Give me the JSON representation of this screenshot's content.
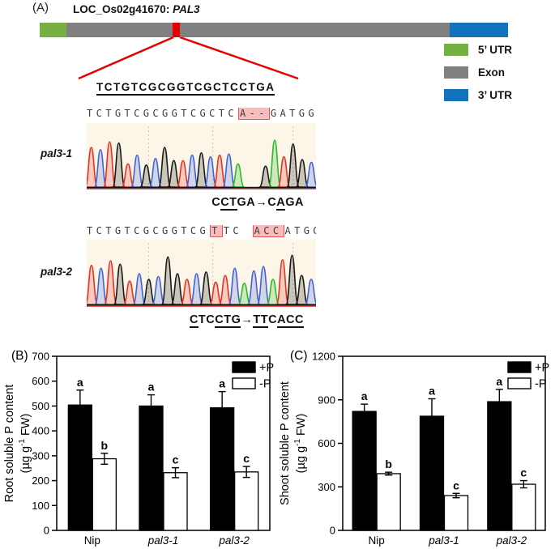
{
  "panelA": {
    "label": "(A)",
    "gene_locus": "LOC_Os02g41670: ",
    "gene_name": "PAL3",
    "colors": {
      "utr5": "#76b043",
      "exon": "#808080",
      "utr3": "#1173bc",
      "marker": "#e60000"
    },
    "legend": [
      {
        "label": "5’ UTR",
        "color": "#76b043"
      },
      {
        "label": "Exon",
        "color": "#808080"
      },
      {
        "label": "3’ UTR",
        "color": "#1173bc"
      }
    ],
    "ref_seq": "TCTGTCGCGGTCGCTCCTGA",
    "trace_colors": {
      "A": "#2eb82e",
      "C": "#4263d8",
      "G": "#1a1a1a",
      "T": "#e63329"
    },
    "mutants": [
      {
        "name": "pal3-1",
        "seq_segments": [
          {
            "text": "TCTGTCGCGGTCGCTC",
            "hl": false
          },
          {
            "text": "A--",
            "hl": true
          },
          {
            "text": "GATGG",
            "hl": false
          }
        ],
        "trace_bases": "TCTGTCGCGGTCGCTCA--GATGGC",
        "trace_heights": [
          0.72,
          0.68,
          0.82,
          0.8,
          0.42,
          0.58,
          0.4,
          0.52,
          0.72,
          0.48,
          0.48,
          0.58,
          0.62,
          0.55,
          0.58,
          0.6,
          0.42,
          0,
          0,
          0.38,
          0.85,
          0.55,
          0.78,
          0.5,
          0.45
        ],
        "mutation": [
          {
            "text": "C",
            "u": false
          },
          {
            "text": "CT",
            "u": true
          },
          {
            "text": "GA",
            "u": false
          },
          {
            "text": "→",
            "u": false
          },
          {
            "text": "C",
            "u": false
          },
          {
            "text": "A",
            "u": true
          },
          {
            "text": "GA",
            "u": false
          }
        ]
      },
      {
        "name": "pal3-2",
        "seq_segments": [
          {
            "text": "TCTGTCGCGGTCG",
            "hl": false
          },
          {
            "text": "T",
            "hl": true
          },
          {
            "text": "TC ",
            "hl": false
          },
          {
            "text": "ACC",
            "hl": true
          },
          {
            "text": "ATGG",
            "hl": false
          }
        ],
        "trace_bases": "TCTGTCGCGGTCGTTCACCATGGC",
        "trace_heights": [
          0.7,
          0.65,
          0.78,
          0.72,
          0.42,
          0.55,
          0.45,
          0.5,
          0.85,
          0.55,
          0.45,
          0.55,
          0.58,
          0.4,
          0.52,
          0.65,
          0.38,
          0.6,
          0.68,
          0.45,
          0.8,
          0.88,
          0.52,
          0.45
        ],
        "mutation": [
          {
            "text": "C",
            "u": true
          },
          {
            "text": "TC",
            "u": false
          },
          {
            "text": "CTG",
            "u": true
          },
          {
            "text": "→",
            "u": false
          },
          {
            "text": "TT",
            "u": true
          },
          {
            "text": "C",
            "u": false
          },
          {
            "text": "ACC",
            "u": true
          }
        ]
      }
    ]
  },
  "chart_data": [
    {
      "id": "root-p",
      "type": "bar",
      "panel_label": "(B)",
      "ylabel": "Root soluble P content",
      "ylabel2_pre": "(µg g",
      "ylabel2_sup": "-1",
      "ylabel2_post": " FW)",
      "categories": [
        "Nip",
        "pal3-1",
        "pal3-2"
      ],
      "categories_italic": [
        false,
        true,
        true
      ],
      "ylim": [
        0,
        700
      ],
      "yticks": [
        0,
        100,
        200,
        300,
        400,
        500,
        600,
        700
      ],
      "grid": false,
      "legend_position": "top-right",
      "series": [
        {
          "name": "+P",
          "fill": "#000000",
          "values": [
            504,
            500,
            493
          ],
          "errors": [
            60,
            45,
            65
          ],
          "letters": [
            "a",
            "a",
            "a"
          ]
        },
        {
          "name": "-P",
          "fill": "#ffffff",
          "values": [
            288,
            232,
            235
          ],
          "errors": [
            22,
            20,
            22
          ],
          "letters": [
            "b",
            "c",
            "c"
          ]
        }
      ]
    },
    {
      "id": "shoot-p",
      "type": "bar",
      "panel_label": "(C)",
      "ylabel": "Shoot soluble P content",
      "ylabel2_pre": "(µg g",
      "ylabel2_sup": "-1",
      "ylabel2_post": " FW)",
      "categories": [
        "Nip",
        "pal3-1",
        "pal3-2"
      ],
      "categories_italic": [
        false,
        true,
        true
      ],
      "ylim": [
        0,
        1200
      ],
      "yticks": [
        0,
        300,
        600,
        900,
        1200
      ],
      "grid": false,
      "legend_position": "top-right",
      "series": [
        {
          "name": "+P",
          "fill": "#000000",
          "values": [
            820,
            787,
            887
          ],
          "errors": [
            50,
            120,
            85
          ],
          "letters": [
            "a",
            "a",
            "a"
          ]
        },
        {
          "name": "-P",
          "fill": "#ffffff",
          "values": [
            391,
            240,
            318
          ],
          "errors": [
            10,
            15,
            25
          ],
          "letters": [
            "b",
            "c",
            "c"
          ]
        }
      ]
    }
  ]
}
